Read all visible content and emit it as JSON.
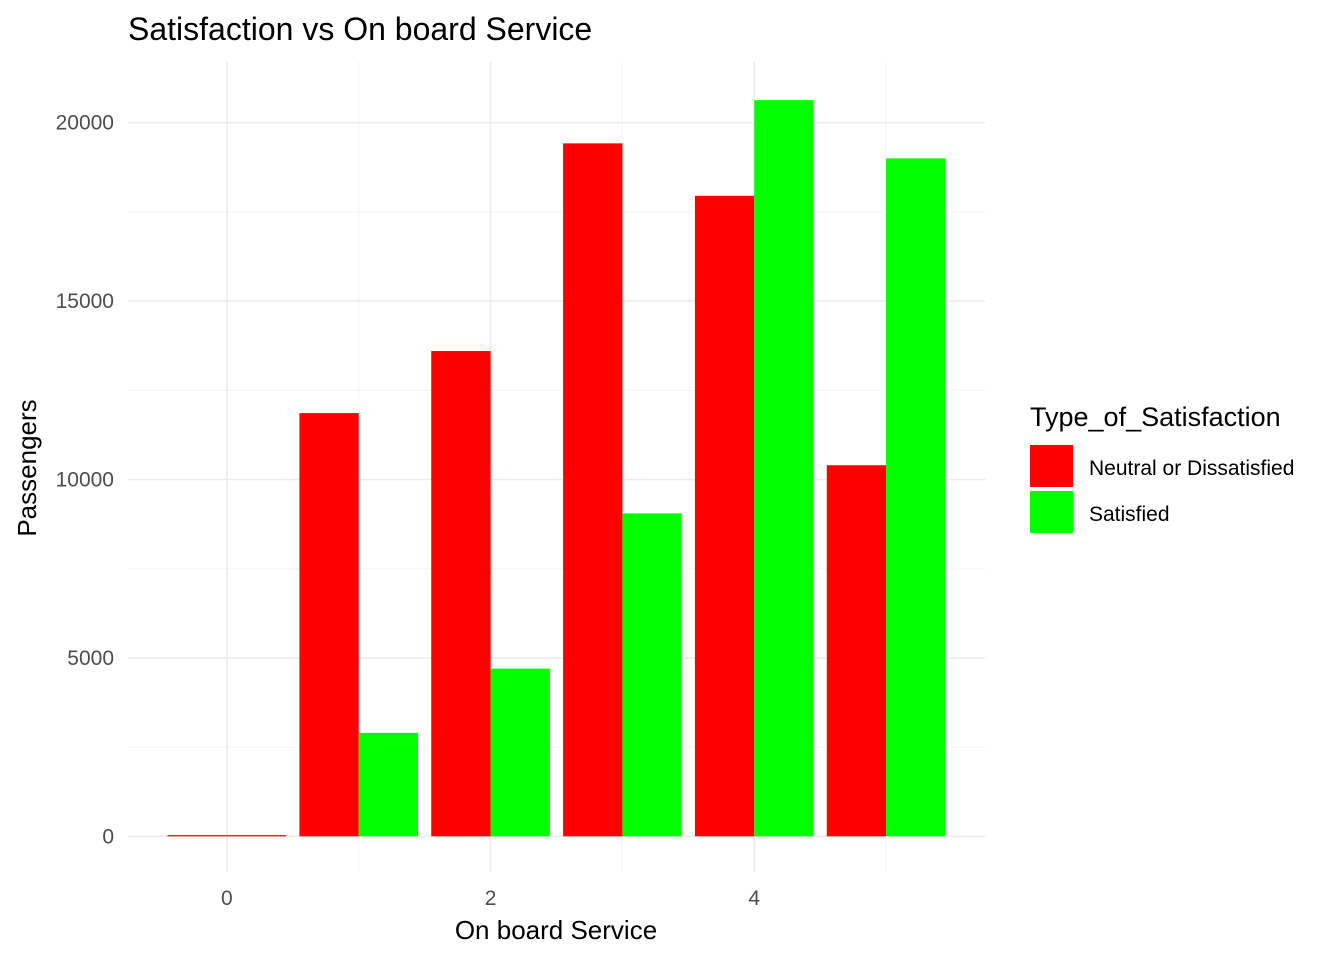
{
  "chart_data": {
    "type": "bar",
    "title": "Satisfaction vs On board Service",
    "xlabel": "On board Service",
    "ylabel": "Passengers",
    "x": [
      0,
      1,
      2,
      3,
      4,
      5
    ],
    "x_ticks": [
      0,
      2,
      4
    ],
    "y_ticks": [
      0,
      5000,
      10000,
      15000,
      20000
    ],
    "xlim": [
      -0.75,
      5.75
    ],
    "ylim": [
      -1000,
      21700
    ],
    "grid": true,
    "legend": {
      "title": "Type_of_Satisfaction",
      "position": "right"
    },
    "series": [
      {
        "name": "Neutral or Dissatisfied",
        "color": "#ff0000",
        "values": [
          3,
          11860,
          13600,
          19420,
          17950,
          10400
        ]
      },
      {
        "name": "Satisfied",
        "color": "#00ff00",
        "values": [
          0,
          2900,
          4700,
          9050,
          20630,
          19000
        ]
      }
    ]
  }
}
